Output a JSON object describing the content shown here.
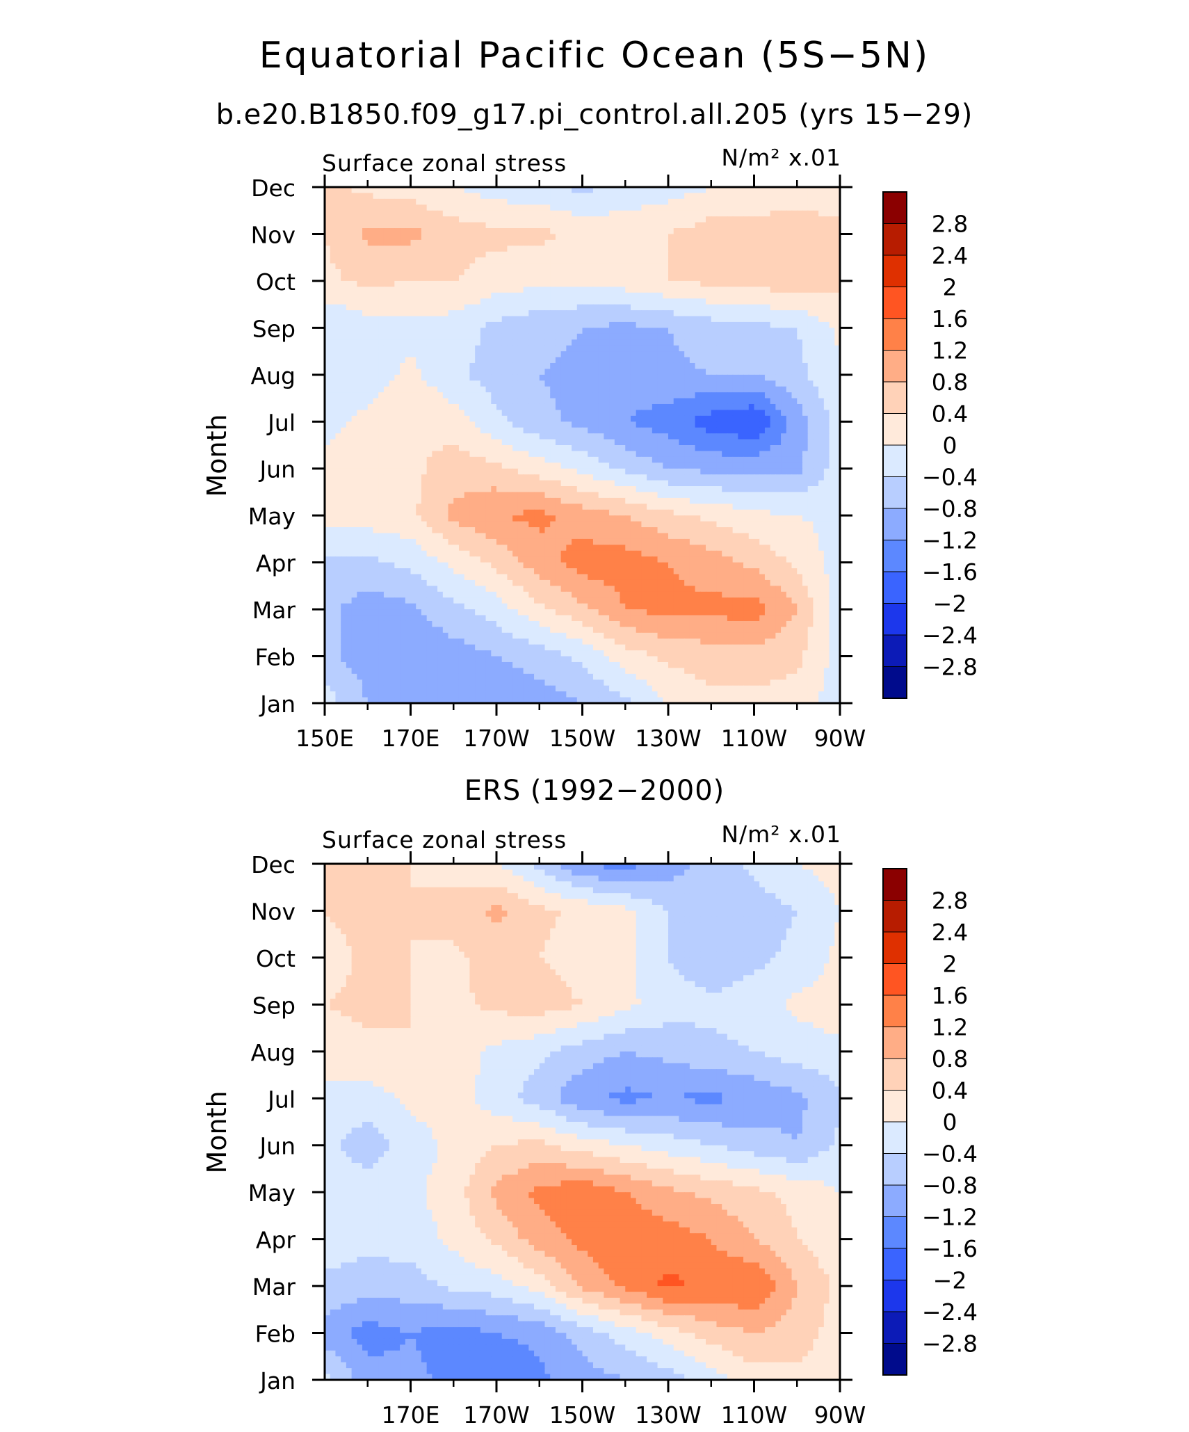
{
  "title": "Equatorial Pacific Ocean (5S−5N)",
  "colorbar": {
    "labels": [
      "2.8",
      "2.4",
      "2",
      "1.6",
      "1.2",
      "0.8",
      "0.4",
      "0",
      "−0.4",
      "−0.8",
      "−1.2",
      "−1.6",
      "−2",
      "−2.4",
      "−2.8"
    ],
    "colors": [
      "#8b0000",
      "#b71c00",
      "#df3000",
      "#ff5522",
      "#ff8148",
      "#ffad86",
      "#ffd2b8",
      "#ffeadb",
      "#dbeaff",
      "#b8ceff",
      "#8cabff",
      "#5c88ff",
      "#3a64ff",
      "#1c37ec",
      "#0c1bb7",
      "#000b8c"
    ]
  },
  "chart_data": [
    {
      "type": "heatmap",
      "title": "b.e20.B1850.f09_g17.pi_control.all.205 (yrs 15−29)",
      "left_label": "Surface zonal stress",
      "right_label": "N/m² x.01",
      "ylabel": "Month",
      "x_tick_labels": [
        "150E",
        "170E",
        "170W",
        "150W",
        "130W",
        "110W",
        "90W"
      ],
      "y_tick_labels": [
        "Jan",
        "Feb",
        "Mar",
        "Apr",
        "May",
        "Jun",
        "Jul",
        "Aug",
        "Sep",
        "Oct",
        "Nov",
        "Dec"
      ],
      "xlim": [
        150,
        270
      ],
      "ylim": [
        1,
        12
      ],
      "x": [
        150,
        160,
        170,
        180,
        190,
        200,
        210,
        220,
        230,
        240,
        250,
        260,
        270
      ],
      "y": [
        1,
        2,
        3,
        4,
        5,
        6,
        7,
        8,
        9,
        10,
        11,
        12
      ],
      "z": [
        [
          -0.2,
          -0.8,
          -0.9,
          -1.0,
          -1.2,
          -1.0,
          -0.8,
          -0.5,
          0.0,
          0.3,
          0.3,
          0.2,
          -0.2
        ],
        [
          -0.7,
          -1.0,
          -1.1,
          -1.0,
          -0.8,
          -0.6,
          -0.3,
          0.2,
          0.5,
          0.6,
          0.6,
          0.5,
          -0.2
        ],
        [
          -0.7,
          -1.0,
          -0.9,
          -0.5,
          -0.2,
          0.3,
          0.7,
          1.2,
          1.3,
          1.3,
          1.4,
          0.8,
          -0.2
        ],
        [
          -0.5,
          -0.5,
          -0.3,
          0.1,
          0.5,
          1.0,
          1.4,
          1.4,
          1.2,
          1.0,
          0.7,
          0.3,
          -0.2
        ],
        [
          0.2,
          0.2,
          0.3,
          0.9,
          1.2,
          1.3,
          1.0,
          0.8,
          0.5,
          0.3,
          0.1,
          0.0,
          -0.1
        ],
        [
          0.1,
          0.1,
          0.3,
          0.6,
          0.5,
          0.2,
          -0.1,
          -0.5,
          -0.8,
          -0.9,
          -0.9,
          -0.9,
          -0.2
        ],
        [
          -0.1,
          0.1,
          0.4,
          0.2,
          -0.3,
          -0.7,
          -0.9,
          -1.2,
          -1.4,
          -1.8,
          -2.0,
          -1.0,
          -0.2
        ],
        [
          -0.3,
          -0.2,
          0.1,
          -0.3,
          -0.6,
          -0.8,
          -0.9,
          -1.0,
          -0.9,
          -0.8,
          -0.8,
          -0.5,
          -0.1
        ],
        [
          -0.4,
          -0.2,
          -0.1,
          -0.2,
          -0.5,
          -0.7,
          -0.8,
          -0.9,
          -0.8,
          -0.6,
          -0.5,
          -0.4,
          0.1
        ],
        [
          0.3,
          0.5,
          0.4,
          0.4,
          0.2,
          0.1,
          0.1,
          0.2,
          0.4,
          0.5,
          0.6,
          0.6,
          0.5
        ],
        [
          0.4,
          0.9,
          0.9,
          0.6,
          0.5,
          0.5,
          0.3,
          0.3,
          0.4,
          0.6,
          0.6,
          0.6,
          0.5
        ],
        [
          0.5,
          0.3,
          0.2,
          0.0,
          -0.2,
          -0.3,
          -0.5,
          -0.3,
          -0.2,
          0.0,
          0.1,
          0.2,
          0.2
        ]
      ]
    },
    {
      "type": "heatmap",
      "title": "ERS (1992−2000)",
      "left_label": "Surface zonal stress",
      "right_label": "N/m² x.01",
      "ylabel": "Month",
      "x_tick_labels": [
        "170E",
        "170W",
        "150W",
        "130W",
        "110W",
        "90W"
      ],
      "y_tick_labels": [
        "Jan",
        "Feb",
        "Mar",
        "Apr",
        "May",
        "Jun",
        "Jul",
        "Aug",
        "Sep",
        "Oct",
        "Nov",
        "Dec"
      ],
      "xlim": [
        150,
        270
      ],
      "ylim": [
        1,
        12
      ],
      "x": [
        150,
        160,
        170,
        180,
        190,
        200,
        210,
        220,
        230,
        240,
        250,
        260,
        270
      ],
      "y": [
        1,
        2,
        3,
        4,
        5,
        6,
        7,
        8,
        9,
        10,
        11,
        12
      ],
      "z": [
        [
          -0.3,
          -1.0,
          -1.1,
          -1.3,
          -1.5,
          -1.3,
          -1.0,
          -0.8,
          -0.6,
          -0.2,
          0.2,
          0.3,
          0.1
        ],
        [
          -1.0,
          -1.4,
          -1.2,
          -1.4,
          -1.2,
          -1.1,
          -0.6,
          -0.2,
          0.2,
          0.6,
          0.8,
          0.6,
          0.2
        ],
        [
          -0.5,
          -0.6,
          -0.6,
          -0.3,
          -0.2,
          0.2,
          0.9,
          1.3,
          1.7,
          1.5,
          1.6,
          0.8,
          0.3
        ],
        [
          -0.2,
          -0.3,
          -0.2,
          0.1,
          0.5,
          1.0,
          1.3,
          1.5,
          1.4,
          1.2,
          0.8,
          0.4,
          0.1
        ],
        [
          -0.2,
          -0.2,
          -0.1,
          0.2,
          0.9,
          1.3,
          1.5,
          1.2,
          0.9,
          0.7,
          0.5,
          0.3,
          0.0
        ],
        [
          -0.3,
          -0.6,
          -0.2,
          0.1,
          0.4,
          0.5,
          0.2,
          0.0,
          -0.2,
          -0.4,
          -0.6,
          -0.8,
          -0.3
        ],
        [
          -0.1,
          -0.2,
          0.1,
          0.2,
          -0.2,
          -0.6,
          -1.1,
          -1.3,
          -1.2,
          -1.3,
          -1.1,
          -0.9,
          -0.5
        ],
        [
          0.2,
          0.3,
          0.4,
          0.2,
          -0.1,
          -0.3,
          -0.6,
          -0.8,
          -0.7,
          -0.5,
          -0.4,
          -0.2,
          -0.1
        ],
        [
          0.4,
          0.5,
          0.4,
          0.3,
          0.5,
          0.6,
          0.4,
          0.1,
          -0.2,
          -0.3,
          -0.2,
          0.1,
          0.2
        ],
        [
          0.2,
          0.5,
          0.4,
          0.3,
          0.6,
          0.4,
          0.2,
          0.1,
          -0.4,
          -0.7,
          -0.5,
          -0.3,
          0.1
        ],
        [
          0.4,
          0.6,
          0.4,
          0.6,
          0.9,
          0.5,
          0.3,
          0.1,
          -0.4,
          -0.8,
          -0.6,
          -0.4,
          0.0
        ],
        [
          0.6,
          0.8,
          0.4,
          0.2,
          0.0,
          -0.5,
          -1.2,
          -1.4,
          -1.0,
          -0.6,
          -0.3,
          0.0,
          0.2
        ]
      ]
    }
  ]
}
